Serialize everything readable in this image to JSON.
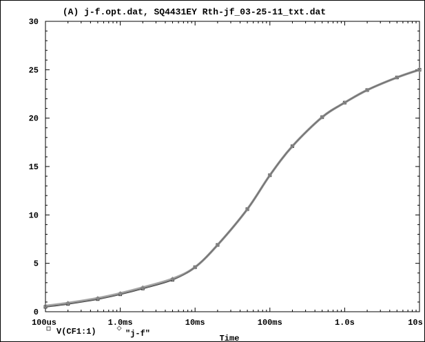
{
  "chart_data": {
    "type": "line",
    "title": "(A) j-f.opt.dat, SQ4431EY Rth-jf_03-25-11_txt.dat",
    "xlabel": "Time",
    "ylabel": "",
    "xscale": "log",
    "xlim": [
      0.0001,
      10
    ],
    "ylim": [
      0,
      30
    ],
    "grid": false,
    "x_tick_labels": [
      "100us",
      "1.0ms",
      "10ms",
      "100ms",
      "1.0s",
      "10s"
    ],
    "y_tick_labels": [
      "0",
      "5",
      "10",
      "15",
      "20",
      "25",
      "30"
    ],
    "legend_placement": "bottom-left",
    "series": [
      {
        "name": "V(CF1:1)",
        "marker": "square",
        "color": "#3a3a3a",
        "x": [
          0.0001,
          0.0002,
          0.0005,
          0.001,
          0.002,
          0.005,
          0.01,
          0.02,
          0.05,
          0.1,
          0.2,
          0.5,
          1,
          2,
          5,
          10
        ],
        "values": [
          0.5,
          0.8,
          1.3,
          1.8,
          2.4,
          3.3,
          4.6,
          6.9,
          10.6,
          14.1,
          17.1,
          20.1,
          21.6,
          22.9,
          24.2,
          25.0
        ]
      },
      {
        "name": "\"j-f\"",
        "marker": "diamond",
        "color": "#8a8a8a",
        "x": [
          0.0001,
          0.0002,
          0.0005,
          0.001,
          0.002,
          0.005,
          0.01,
          0.02,
          0.05,
          0.1,
          0.2,
          0.5,
          1,
          2,
          5,
          10
        ],
        "values": [
          0.6,
          0.9,
          1.4,
          1.9,
          2.5,
          3.4,
          4.6,
          6.9,
          10.6,
          14.1,
          17.1,
          20.1,
          21.6,
          22.9,
          24.2,
          25.0
        ]
      }
    ]
  }
}
